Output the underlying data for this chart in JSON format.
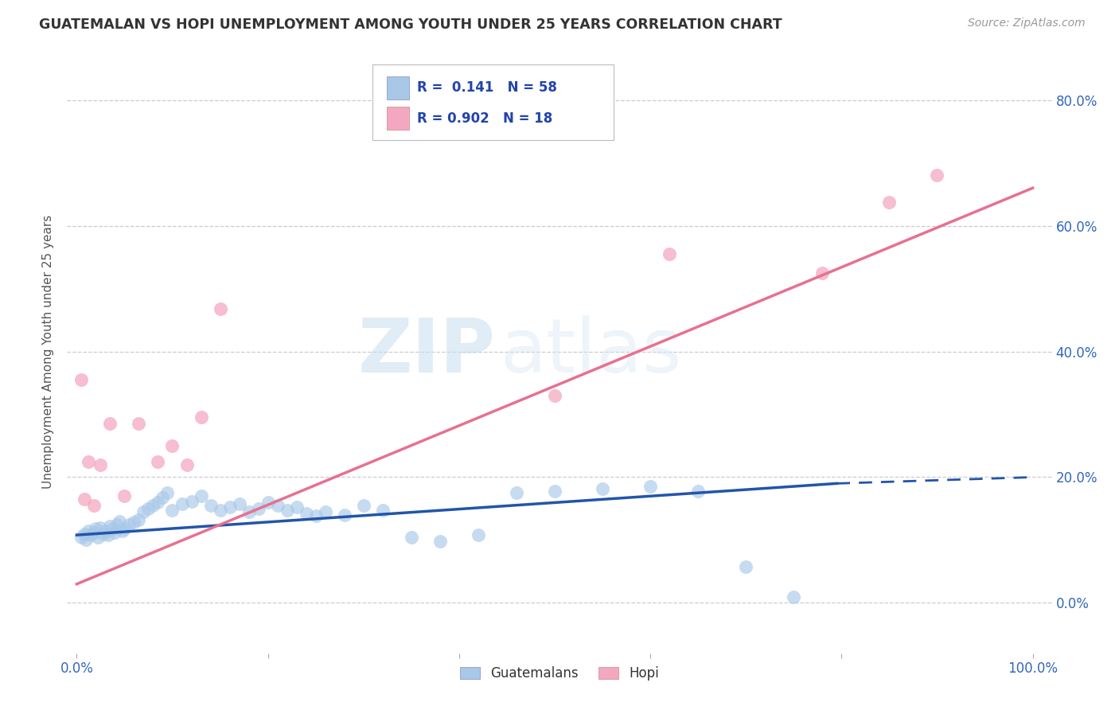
{
  "title": "GUATEMALAN VS HOPI UNEMPLOYMENT AMONG YOUTH UNDER 25 YEARS CORRELATION CHART",
  "source": "Source: ZipAtlas.com",
  "ylabel": "Unemployment Among Youth under 25 years",
  "legend_label1": "Guatemalans",
  "legend_label2": "Hopi",
  "legend_r1": "R =  0.141",
  "legend_n1": "N = 58",
  "legend_r2": "R = 0.902",
  "legend_n2": "N = 18",
  "color_blue": "#a8c8e8",
  "color_pink": "#f4a8c0",
  "color_blue_line": "#2255aa",
  "color_pink_line": "#e87090",
  "watermark_zip": "ZIP",
  "watermark_atlas": "atlas",
  "ytick_positions": [
    0.0,
    0.2,
    0.4,
    0.6,
    0.8
  ],
  "ytick_labels": [
    "0.0%",
    "20.0%",
    "40.0%",
    "60.0%",
    "80.0%"
  ],
  "ymin": -0.08,
  "ymax": 0.88,
  "xmin": -0.01,
  "xmax": 1.02,
  "blue_scatter_x": [
    0.005,
    0.008,
    0.01,
    0.012,
    0.015,
    0.018,
    0.02,
    0.022,
    0.025,
    0.028,
    0.03,
    0.033,
    0.035,
    0.038,
    0.04,
    0.042,
    0.045,
    0.048,
    0.05,
    0.055,
    0.06,
    0.065,
    0.07,
    0.075,
    0.08,
    0.085,
    0.09,
    0.095,
    0.1,
    0.11,
    0.12,
    0.13,
    0.14,
    0.15,
    0.16,
    0.17,
    0.18,
    0.19,
    0.2,
    0.21,
    0.22,
    0.23,
    0.24,
    0.25,
    0.26,
    0.28,
    0.3,
    0.32,
    0.35,
    0.38,
    0.42,
    0.46,
    0.5,
    0.55,
    0.6,
    0.65,
    0.7,
    0.75
  ],
  "blue_scatter_y": [
    0.105,
    0.11,
    0.1,
    0.115,
    0.108,
    0.112,
    0.118,
    0.105,
    0.12,
    0.11,
    0.115,
    0.108,
    0.122,
    0.118,
    0.112,
    0.125,
    0.13,
    0.115,
    0.118,
    0.125,
    0.128,
    0.132,
    0.145,
    0.15,
    0.155,
    0.16,
    0.168,
    0.175,
    0.148,
    0.158,
    0.162,
    0.17,
    0.155,
    0.148,
    0.152,
    0.158,
    0.145,
    0.15,
    0.16,
    0.155,
    0.148,
    0.152,
    0.142,
    0.138,
    0.145,
    0.14,
    0.155,
    0.148,
    0.105,
    0.098,
    0.108,
    0.175,
    0.178,
    0.182,
    0.185,
    0.178,
    0.058,
    0.01
  ],
  "pink_scatter_x": [
    0.005,
    0.008,
    0.012,
    0.018,
    0.025,
    0.035,
    0.05,
    0.065,
    0.085,
    0.1,
    0.115,
    0.13,
    0.15,
    0.5,
    0.62,
    0.78,
    0.85,
    0.9
  ],
  "pink_scatter_y": [
    0.355,
    0.165,
    0.225,
    0.155,
    0.22,
    0.285,
    0.17,
    0.285,
    0.225,
    0.25,
    0.22,
    0.295,
    0.468,
    0.33,
    0.555,
    0.525,
    0.638,
    0.68
  ],
  "blue_line_y_start": 0.108,
  "blue_line_y_solid_end_x": 0.795,
  "blue_line_y_solid_end_y": 0.19,
  "blue_line_y_end": 0.2,
  "pink_line_y_start": 0.03,
  "pink_line_y_end": 0.66
}
